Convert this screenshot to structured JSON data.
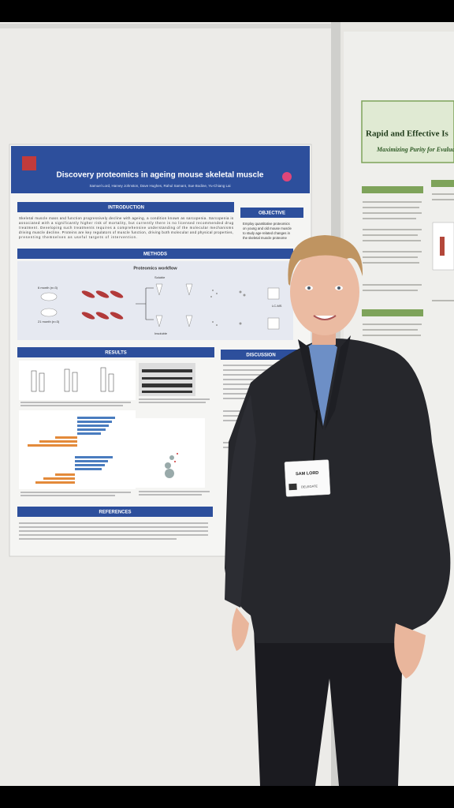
{
  "poster": {
    "title": "Discovery proteomics in ageing mouse skeletal muscle",
    "authors": "Samuel Lord, Harvey Johnston, Dave Hughes, Rahul Samant, Sue Bodine, Yu-Chiang Lai",
    "sections": {
      "introduction": "INTRODUCTION",
      "objective": "OBJECTIVE",
      "methods": "METHODS",
      "results": "RESULTS",
      "discussion": "DISCUSSION",
      "references": "REFERENCES"
    },
    "introduction_lines": [
      "Skeletal muscle mass and function progressively decline with ageing, a condition known as sarcopenia. Sarcopenia is",
      "associated with a significantly higher risk of mortality, but currently there is no licensed recommended drug",
      "treatment. Developing such treatments requires a comprehensive understanding of the molecular mechanisms",
      "driving muscle decline. Proteins are key regulators of muscle function, driving both molecular and physical properties,",
      "presenting themselves as useful targets of intervention."
    ],
    "objective_lines": [
      "Employ quantitative proteomics",
      "on young and old mouse muscle",
      "to study age-related changes in",
      "the skeletal muscle proteome"
    ],
    "workflow_title": "Proteomics workflow",
    "workflow_labels": {
      "young": "6 month (n=3)",
      "old": "21 month (n=3)",
      "soluble": "Soluble",
      "insoluble": "Insoluble",
      "lcms": "LC-MS"
    }
  },
  "right_poster": {
    "title": "Rapid and Effective Is",
    "subtitle": "Maximizing Purity for Evalua"
  },
  "badge": {
    "name": "SAM LORD",
    "role": "DELEGATE"
  }
}
